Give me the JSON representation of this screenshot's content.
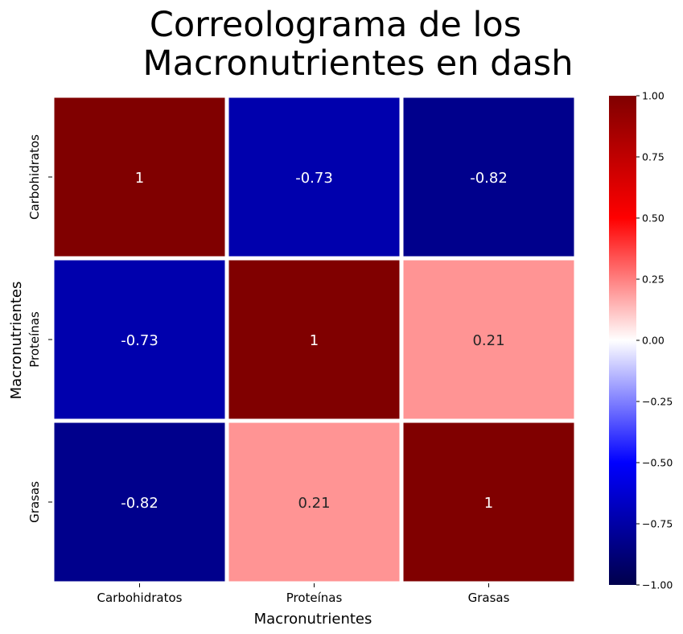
{
  "chart_data": {
    "type": "heatmap",
    "title_lines": [
      "Correolograma de los",
      "Macronutrientes en dash"
    ],
    "xlabel": "Macronutrientes",
    "ylabel": "Macronutrientes",
    "x_categories": [
      "Carbohidratos",
      "Proteínas",
      "Grasas"
    ],
    "y_categories": [
      "Carbohidratos",
      "Proteínas",
      "Grasas"
    ],
    "values": [
      [
        1,
        -0.73,
        -0.82
      ],
      [
        -0.73,
        1,
        0.21
      ],
      [
        -0.82,
        0.21,
        1
      ]
    ],
    "cell_labels": [
      [
        "1",
        "-0.73",
        "-0.82"
      ],
      [
        "-0.73",
        "1",
        "0.21"
      ],
      [
        "-0.82",
        "0.21",
        "1"
      ]
    ],
    "colormap": "seismic",
    "vmin": -1,
    "vmax": 1,
    "colorbar_ticks": [
      "1.00",
      "0.75",
      "0.50",
      "0.25",
      "0.00",
      "−0.25",
      "−0.50",
      "−0.75",
      "−1.00"
    ],
    "colorbar_tick_values": [
      1,
      0.75,
      0.5,
      0.25,
      0,
      -0.25,
      -0.5,
      -0.75,
      -1
    ],
    "grid_line_color": "#ffffff"
  }
}
